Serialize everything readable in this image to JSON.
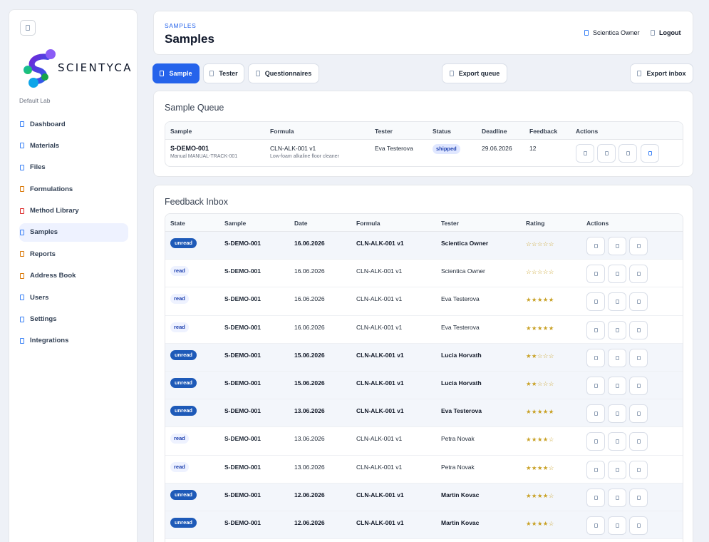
{
  "brand": {
    "name": "SCIENTYCA",
    "lab": "Default Lab"
  },
  "sidebar": {
    "items": [
      {
        "label": "Dashboard",
        "icon": "dashboard-icon"
      },
      {
        "label": "Materials",
        "icon": "flask-icon"
      },
      {
        "label": "Files",
        "icon": "file-icon"
      },
      {
        "label": "Formulations",
        "icon": "beaker-icon"
      },
      {
        "label": "Method Library",
        "icon": "book-icon"
      },
      {
        "label": "Samples",
        "icon": "sample-icon",
        "active": true
      },
      {
        "label": "Reports",
        "icon": "report-icon"
      },
      {
        "label": "Address Book",
        "icon": "address-book-icon"
      },
      {
        "label": "Users",
        "icon": "users-icon"
      },
      {
        "label": "Settings",
        "icon": "gear-icon"
      },
      {
        "label": "Integrations",
        "icon": "plug-icon"
      }
    ]
  },
  "header": {
    "eyebrow": "SAMPLES",
    "title": "Samples",
    "user": "Scientica Owner",
    "logout": "Logout"
  },
  "toolbar": {
    "sample": "Sample",
    "tester": "Tester",
    "questionnaires": "Questionnaires",
    "export_queue": "Export queue",
    "export_inbox": "Export inbox"
  },
  "queue": {
    "title": "Sample Queue",
    "columns": [
      "Sample",
      "Formula",
      "Tester",
      "Status",
      "Deadline",
      "Feedback",
      "Actions"
    ],
    "rows": [
      {
        "sample": "S-DEMO-001",
        "sample_sub": "Manual MANUAL-TRACK-001",
        "formula": "CLN-ALK-001 v1",
        "formula_sub": "Low-foam alkaline floor cleaner",
        "tester": "Eva Testerova",
        "status": "shipped",
        "deadline": "29.06.2026",
        "feedback": "12"
      }
    ]
  },
  "inbox": {
    "title": "Feedback Inbox",
    "columns": [
      "State",
      "Sample",
      "Date",
      "Formula",
      "Tester",
      "Rating",
      "Actions"
    ],
    "rows": [
      {
        "state": "unread",
        "sample": "S-DEMO-001",
        "date": "16.06.2026",
        "formula": "CLN-ALK-001 v1",
        "tester": "Scientica Owner",
        "rating": 0
      },
      {
        "state": "read",
        "sample": "S-DEMO-001",
        "date": "16.06.2026",
        "formula": "CLN-ALK-001 v1",
        "tester": "Scientica Owner",
        "rating": 0
      },
      {
        "state": "read",
        "sample": "S-DEMO-001",
        "date": "16.06.2026",
        "formula": "CLN-ALK-001 v1",
        "tester": "Eva Testerova",
        "rating": 5
      },
      {
        "state": "read",
        "sample": "S-DEMO-001",
        "date": "16.06.2026",
        "formula": "CLN-ALK-001 v1",
        "tester": "Eva Testerova",
        "rating": 5
      },
      {
        "state": "unread",
        "sample": "S-DEMO-001",
        "date": "15.06.2026",
        "formula": "CLN-ALK-001 v1",
        "tester": "Lucia Horvath",
        "rating": 2
      },
      {
        "state": "unread",
        "sample": "S-DEMO-001",
        "date": "15.06.2026",
        "formula": "CLN-ALK-001 v1",
        "tester": "Lucia Horvath",
        "rating": 2
      },
      {
        "state": "unread",
        "sample": "S-DEMO-001",
        "date": "13.06.2026",
        "formula": "CLN-ALK-001 v1",
        "tester": "Eva Testerova",
        "rating": 5
      },
      {
        "state": "read",
        "sample": "S-DEMO-001",
        "date": "13.06.2026",
        "formula": "CLN-ALK-001 v1",
        "tester": "Petra Novak",
        "rating": 4
      },
      {
        "state": "read",
        "sample": "S-DEMO-001",
        "date": "13.06.2026",
        "formula": "CLN-ALK-001 v1",
        "tester": "Petra Novak",
        "rating": 4
      },
      {
        "state": "unread",
        "sample": "S-DEMO-001",
        "date": "12.06.2026",
        "formula": "CLN-ALK-001 v1",
        "tester": "Martin Kovac",
        "rating": 4
      },
      {
        "state": "unread",
        "sample": "S-DEMO-001",
        "date": "12.06.2026",
        "formula": "CLN-ALK-001 v1",
        "tester": "Martin Kovac",
        "rating": 4
      }
    ]
  },
  "colors": {
    "accent": "#2563eb",
    "unread_pill": "#1e5ab8",
    "star": "#c9a227"
  }
}
